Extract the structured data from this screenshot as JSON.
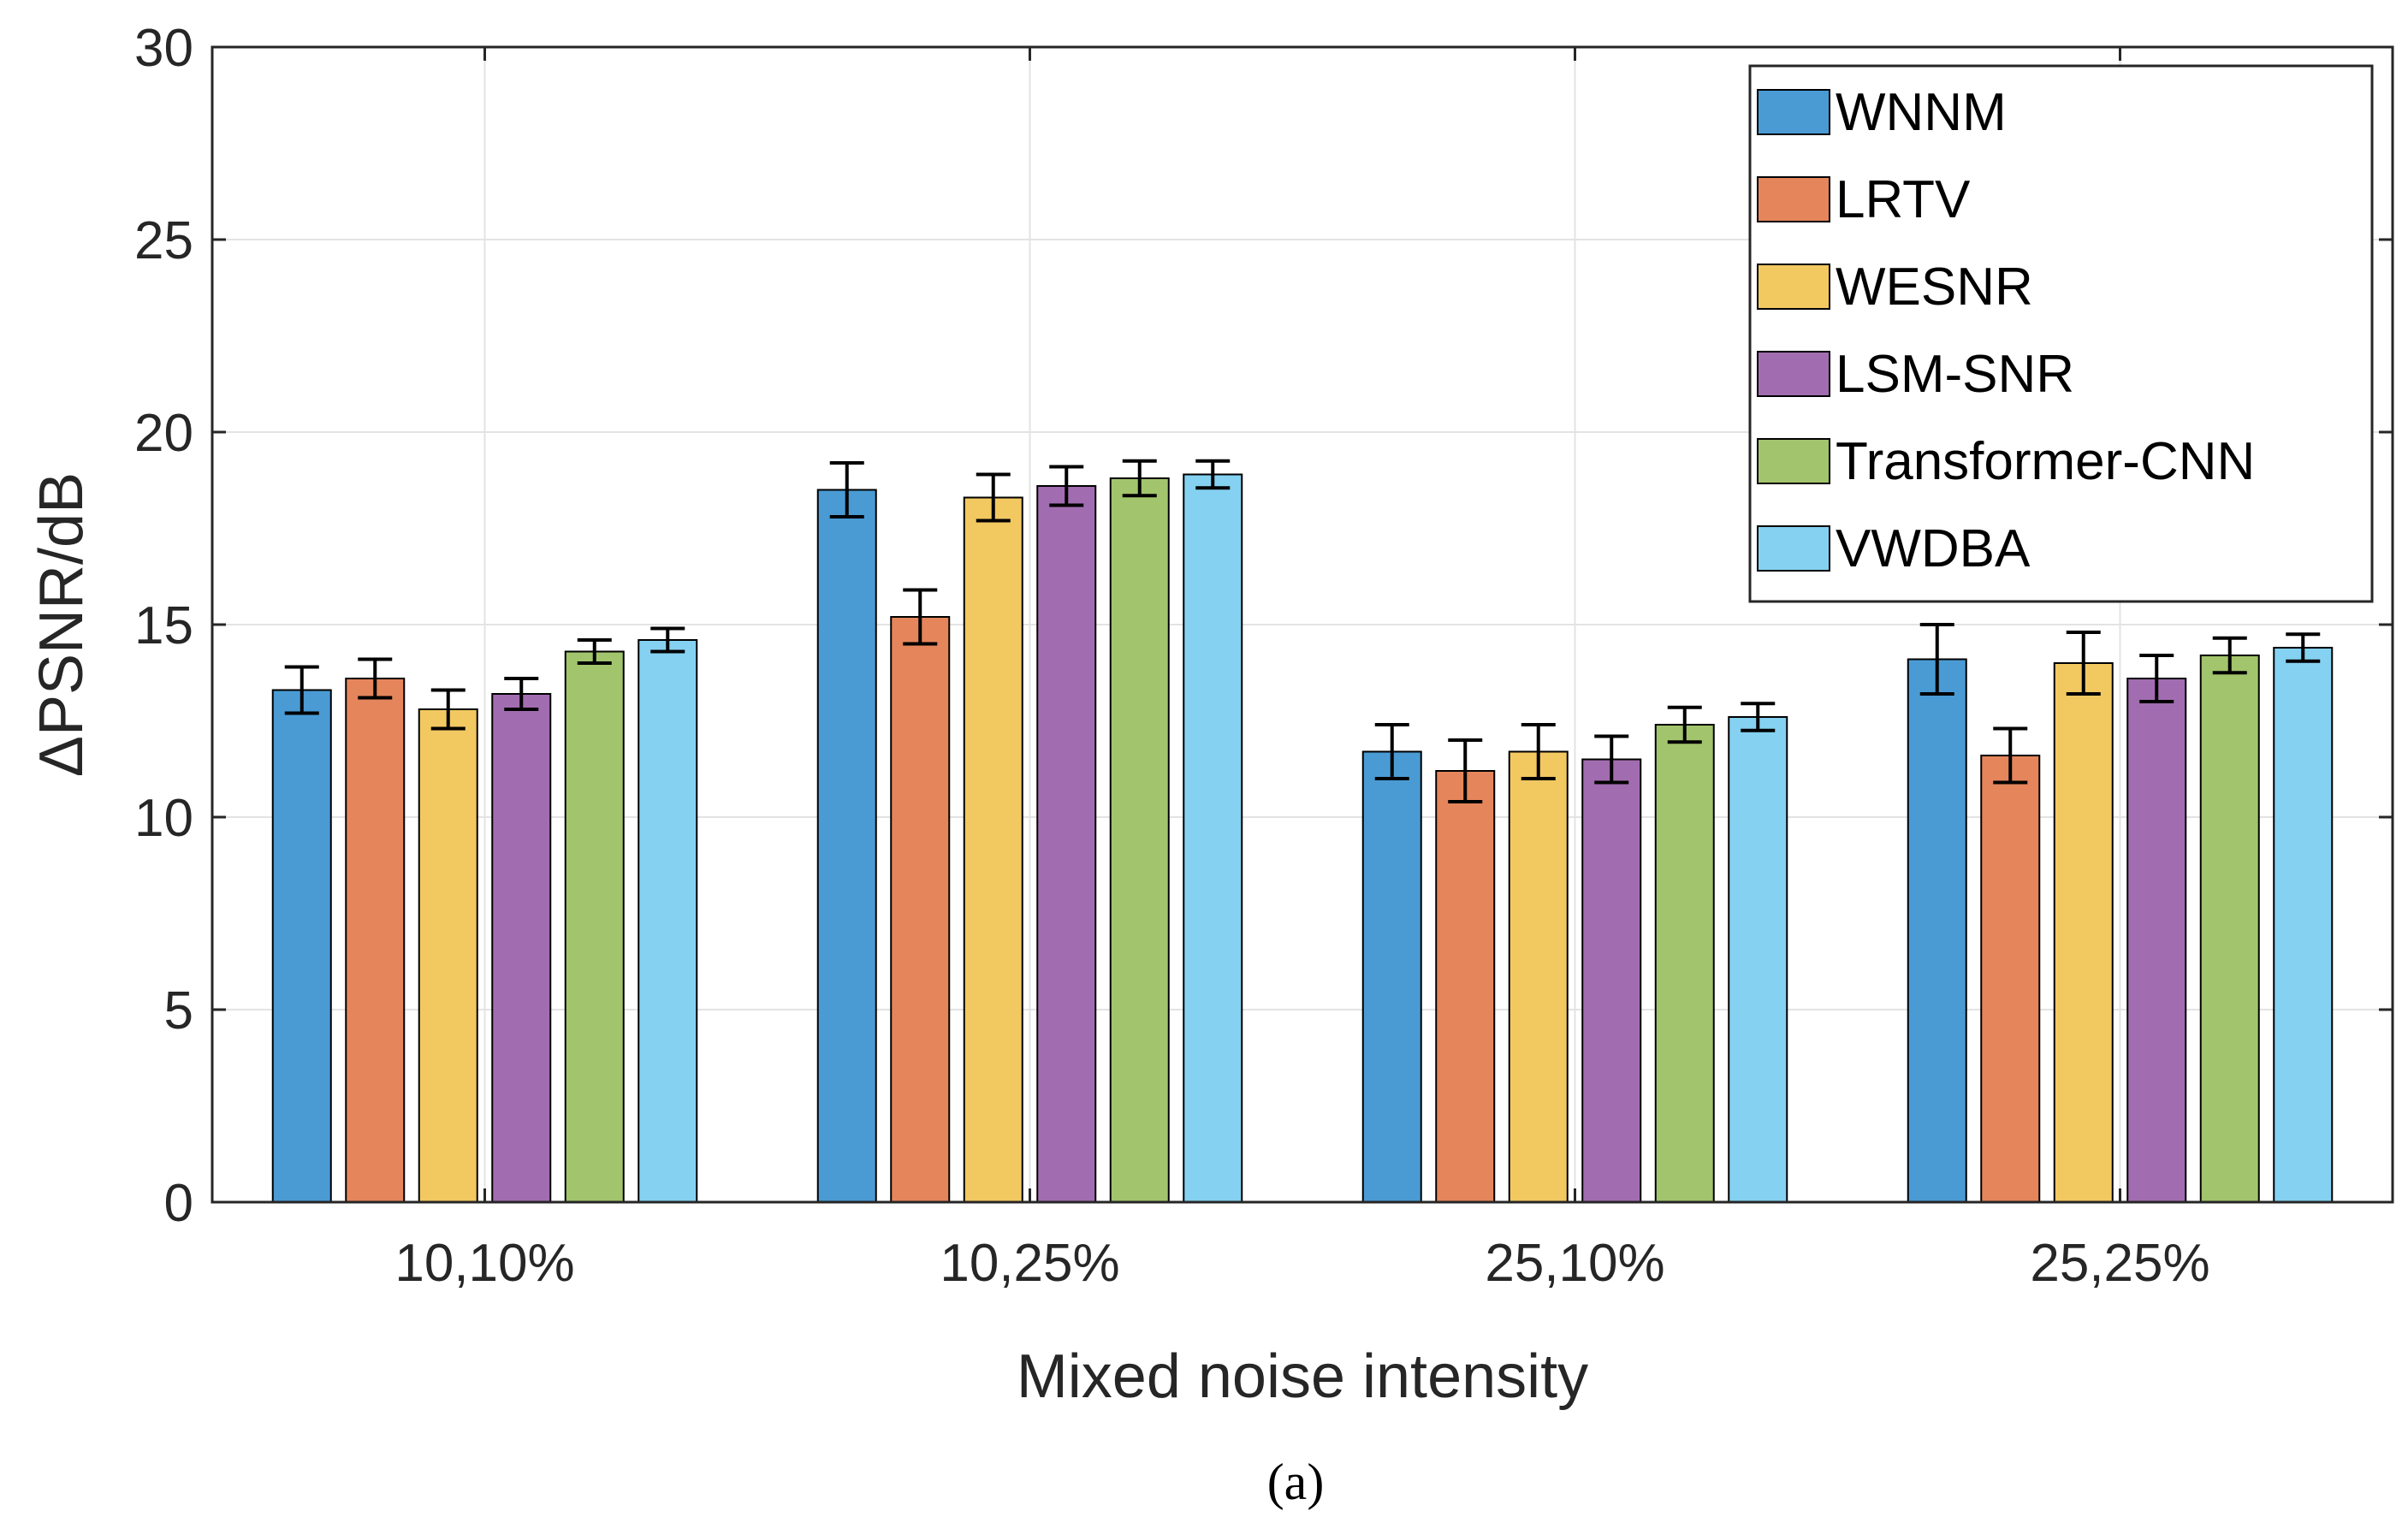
{
  "chart_data": {
    "type": "bar",
    "title": "",
    "xlabel": "Mixed noise intensity",
    "ylabel": "ΔPSNR/dB",
    "ylim": [
      0,
      30
    ],
    "yticks": [
      0,
      5,
      10,
      15,
      20,
      25,
      30
    ],
    "grid": true,
    "legend_position": "top-right",
    "categories": [
      "10,10%",
      "10,25%",
      "25,10%",
      "25,25%"
    ],
    "series": [
      {
        "name": "WNNM",
        "color": "#4a9bd4",
        "values": [
          13.3,
          18.5,
          11.7,
          14.1
        ],
        "errors": [
          0.6,
          0.7,
          0.7,
          0.9
        ]
      },
      {
        "name": "LRTV",
        "color": "#e5855b",
        "values": [
          13.6,
          15.2,
          11.2,
          11.6
        ],
        "errors": [
          0.5,
          0.7,
          0.8,
          0.7
        ]
      },
      {
        "name": "WESNR",
        "color": "#f2c861",
        "values": [
          12.8,
          18.3,
          11.7,
          14.0
        ],
        "errors": [
          0.5,
          0.6,
          0.7,
          0.8
        ]
      },
      {
        "name": "LSM-SNR",
        "color": "#a26db0",
        "values": [
          13.2,
          18.6,
          11.5,
          13.6
        ],
        "errors": [
          0.4,
          0.5,
          0.6,
          0.6
        ]
      },
      {
        "name": "Transformer-CNN",
        "color": "#a2c46c",
        "values": [
          14.3,
          18.8,
          12.4,
          14.2
        ],
        "errors": [
          0.3,
          0.45,
          0.45,
          0.45
        ]
      },
      {
        "name": "VWDBA",
        "color": "#85d1f1",
        "values": [
          14.6,
          18.9,
          12.6,
          14.4
        ],
        "errors": [
          0.3,
          0.35,
          0.35,
          0.35
        ]
      }
    ]
  },
  "caption": "(a)"
}
